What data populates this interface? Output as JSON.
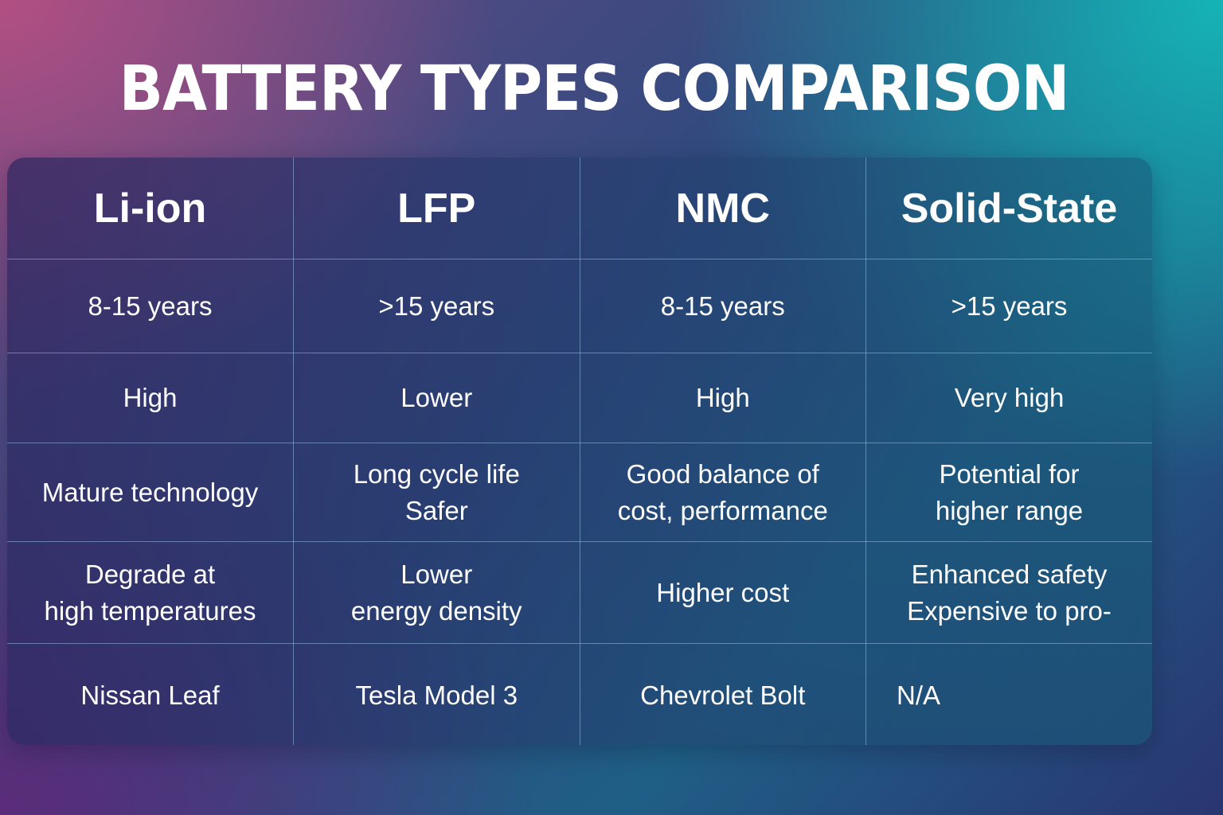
{
  "title": "BATTERY TYPES COMPARISON",
  "chart_data": {
    "type": "table",
    "title": "BATTERY TYPES COMPARISON",
    "columns": [
      "Li-ion",
      "LFP",
      "NMC",
      "Solid-State"
    ],
    "rows": [
      [
        "8-15 years",
        ">15 years",
        "8-15 years",
        ">15 years"
      ],
      [
        "High",
        "Lower",
        "High",
        "Very high"
      ],
      [
        "Mature technology",
        "Long cycle life\nSafer",
        "Good balance of\ncost, performance",
        "Potential for\nhigher range"
      ],
      [
        "Degrade at\nhigh temperatures",
        "Lower\nenergy density",
        "Higher cost",
        "Enhanced safety\nExpensive to pro-"
      ],
      [
        "Nissan Leaf",
        "Tesla Model 3",
        "Chevrolet Bolt",
        "N/A"
      ]
    ]
  },
  "colors": {
    "text": "#ffffff",
    "grid_line": "#96bee1",
    "bg_top_left": "#be5082",
    "bg_top_right": "#14b9b9",
    "bg_bottom": "#5f2878"
  }
}
